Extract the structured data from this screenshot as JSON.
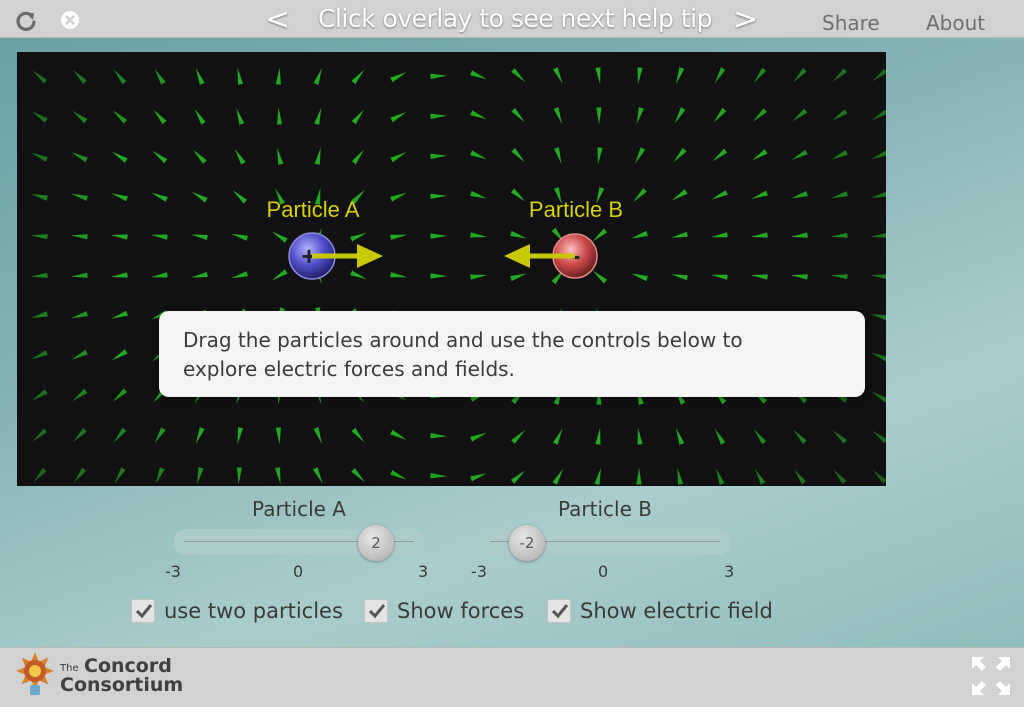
{
  "topbar": {
    "prev_label": "<",
    "next_label": ">",
    "help_title": "Click overlay to see next help tip",
    "share_label": "Share",
    "about_label": "About"
  },
  "simulation": {
    "particle_a": {
      "label": "Particle A",
      "sign": "+"
    },
    "particle_b": {
      "label": "Particle B",
      "sign": "-"
    },
    "colors": {
      "background": "#111111",
      "field_arrow": "#22aa22",
      "label": "#d4d200",
      "force_arrow": "#c8c800",
      "particle_a": "#4c4cc8",
      "particle_b": "#c84a4a"
    }
  },
  "help_tip": {
    "line1": "Drag the particles around and use the controls below to",
    "line2": "explore electric forces and fields."
  },
  "controls": {
    "slider_a": {
      "label": "Particle A",
      "value": "2",
      "min": "-3",
      "mid": "0",
      "max": "3"
    },
    "slider_b": {
      "label": "Particle B",
      "value": "-2",
      "min": "-3",
      "mid": "0",
      "max": "3"
    },
    "checkboxes": [
      {
        "label": "use two particles",
        "checked": true
      },
      {
        "label": "Show forces",
        "checked": true
      },
      {
        "label": "Show electric field",
        "checked": true
      }
    ]
  },
  "footer": {
    "logo_small": "The",
    "logo_word1": "Concord",
    "logo_word2": "Consortium"
  }
}
